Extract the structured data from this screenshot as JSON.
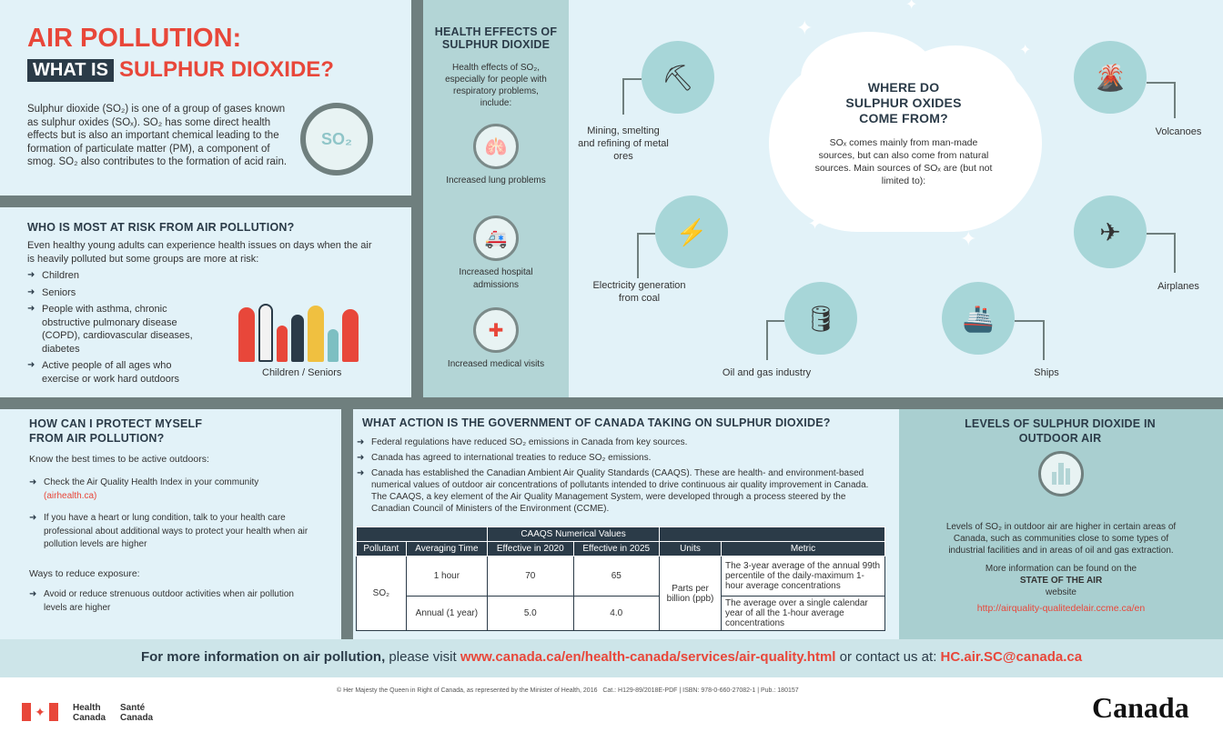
{
  "title": {
    "line1": "AIR POLLUTION:",
    "what_is": "WHAT IS",
    "subject": "SULPHUR DIOXIDE?"
  },
  "intro": "Sulphur dioxide (SO₂) is one of a group of gases known as sulphur oxides (SOₓ). SO₂ has some direct health effects but is also an important chemical leading to the formation of particulate matter (PM), a component of smog. SO₂ also contributes to the formation of acid rain.",
  "intro_icon_text": "SO₂",
  "risk": {
    "heading": "WHO IS MOST AT RISK FROM AIR POLLUTION?",
    "intro": "Even healthy young adults can experience health issues on days when the air is heavily polluted but some groups are more at risk:",
    "items": [
      "Children",
      "Seniors",
      "People with asthma, chronic obstructive pulmonary disease (COPD), cardiovascular diseases, diabetes",
      "Active people of all ages who exercise or work hard outdoors"
    ],
    "caption": "Children / Seniors"
  },
  "health": {
    "heading": "HEALTH EFFECTS OF SULPHUR DIOXIDE",
    "intro": "Health effects of SO₂, especially for people with respiratory problems, include:",
    "items": [
      "Increased lung problems",
      "Increased hospital admissions",
      "Increased medical visits"
    ]
  },
  "sources": {
    "heading": "WHERE DO SULPHUR OXIDES COME FROM?",
    "intro": "SOₓ comes mainly from man-made sources, but can also come from natural sources. Main sources of SOₓ are (but not limited to):",
    "items": [
      "Mining, smelting and refining of metal ores",
      "Electricity generation from coal",
      "Oil and gas industry",
      "Ships",
      "Airplanes",
      "Volcanoes"
    ]
  },
  "protect": {
    "heading": "HOW CAN I PROTECT MYSELF FROM AIR POLLUTION?",
    "sub1": "Know the best times to be active outdoors:",
    "items1": [
      "Check the Air Quality Health Index in your community",
      "If you have a heart or lung condition, talk to your health care professional about additional ways to protect your health when air pollution levels are higher"
    ],
    "link": "(airhealth.ca)",
    "sub2": "Ways to reduce exposure:",
    "items2": [
      "Avoid or reduce strenuous outdoor activities when air pollution levels are higher"
    ]
  },
  "action": {
    "heading": "WHAT ACTION IS THE GOVERNMENT OF CANADA TAKING ON SULPHUR DIOXIDE?",
    "items": [
      "Federal regulations have reduced SO₂ emissions in Canada from key sources.",
      "Canada has agreed to international treaties to reduce SO₂ emissions.",
      "Canada has established the Canadian Ambient Air Quality Standards (CAAQS). These are health- and environment-based numerical values of outdoor air concentrations of pollutants intended to drive continuous air quality improvement in Canada. The CAAQS, a key element of the Air Quality Management System, were developed through a process steered by the Canadian Council of Ministers of the Environment (CCME)."
    ],
    "table": {
      "group_header": "CAAQS Numerical Values",
      "headers": [
        "Pollutant",
        "Averaging Time",
        "Effective in 2020",
        "Effective in 2025",
        "Units",
        "Metric"
      ],
      "pollutant": "SO₂",
      "units": "Parts per billion (ppb)",
      "rows": [
        {
          "time": "1 hour",
          "v2020": "70",
          "v2025": "65",
          "metric": "The 3-year average of the annual 99th percentile of the daily-maximum 1-hour average concentrations"
        },
        {
          "time": "Annual (1 year)",
          "v2020": "5.0",
          "v2025": "4.0",
          "metric": "The average over a single calendar year of all the 1-hour average concentrations"
        }
      ]
    }
  },
  "levels": {
    "heading": "LEVELS OF SULPHUR DIOXIDE IN OUTDOOR AIR",
    "text": "Levels of SO₂ in outdoor air are higher in certain areas of Canada, such as communities close to some types of industrial facilities and in areas of oil and gas extraction.",
    "more": "More information can be found on the",
    "site": "STATE OF THE AIR",
    "website": "website",
    "url": "http://airquality-qualitedelair.ccme.ca/en"
  },
  "info_bar": {
    "pre": "For more information on air pollution,",
    "mid": " please visit ",
    "url": "www.canada.ca/en/health-canada/services/air-quality.html",
    "or": " or contact us at: ",
    "email": "HC.air.SC@canada.ca"
  },
  "footer": {
    "copyright": "© Her Majesty the Queen in Right of Canada, as represented by the Minister of Health, 2016   Cat.: H129-89/2018E-PDF | ISBN: 978-0-660-27082-1 | Pub.: 180157",
    "dept_en": "Health Canada",
    "dept_fr": "Santé Canada",
    "wordmark": "Canada"
  },
  "colors": {
    "accent": "#e8473a",
    "navy": "#2b3b48",
    "light": "#e2f2f8",
    "teal": "#b3d5d6"
  }
}
